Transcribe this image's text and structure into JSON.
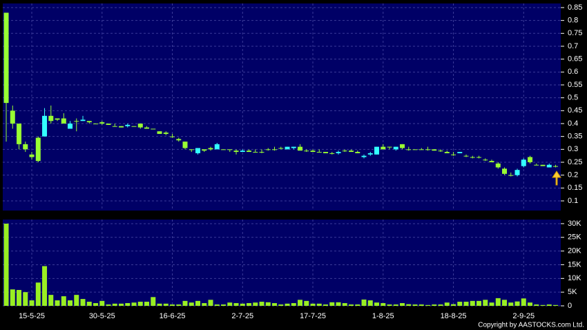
{
  "chart_data": [
    {
      "type": "candlestick",
      "categories": [
        null,
        null,
        null,
        null,
        "15-5-25",
        null,
        null,
        null,
        null,
        null,
        null,
        null,
        null,
        null,
        null,
        "30-5-25",
        null,
        null,
        null,
        null,
        null,
        null,
        null,
        null,
        null,
        null,
        "16-6-25",
        null,
        null,
        null,
        null,
        null,
        null,
        null,
        null,
        null,
        null,
        "2-7-25",
        null,
        null,
        null,
        null,
        null,
        null,
        null,
        null,
        null,
        null,
        "17-7-25",
        null,
        null,
        null,
        null,
        null,
        null,
        null,
        null,
        null,
        null,
        "1-8-25",
        null,
        null,
        null,
        null,
        null,
        null,
        null,
        null,
        null,
        null,
        "18-8-25",
        null,
        null,
        null,
        null,
        null,
        null,
        null,
        null,
        null,
        null,
        "2-9-25",
        null,
        null,
        null,
        null,
        null
      ],
      "open": [
        0.83,
        0.45,
        0.4,
        0.32,
        0.28,
        0.345,
        0.35,
        0.43,
        0.42,
        0.42,
        0.38,
        0.41,
        0.41,
        0.41,
        0.4,
        0.405,
        0.4,
        0.39,
        0.39,
        0.39,
        0.39,
        0.4,
        0.385,
        0.38,
        0.37,
        0.365,
        0.35,
        0.34,
        0.33,
        0.3,
        0.285,
        0.3,
        0.305,
        0.3,
        0.3,
        0.3,
        0.295,
        0.29,
        0.295,
        0.29,
        0.29,
        0.3,
        0.3,
        0.305,
        0.3,
        0.305,
        0.31,
        0.295,
        0.295,
        0.29,
        0.29,
        0.285,
        0.285,
        0.295,
        0.295,
        0.29,
        0.27,
        0.28,
        0.28,
        0.31,
        0.31,
        0.3,
        0.32,
        0.3,
        0.3,
        0.3,
        0.3,
        0.3,
        0.295,
        0.29,
        0.28,
        0.285,
        0.275,
        0.27,
        0.27,
        0.26,
        0.255,
        0.245,
        0.225,
        0.2,
        0.2,
        0.235,
        0.27,
        0.24,
        0.24,
        0.23,
        0.235
      ],
      "high": [
        0.83,
        0.47,
        0.4,
        0.33,
        0.29,
        0.35,
        0.46,
        0.47,
        0.42,
        0.44,
        0.41,
        0.42,
        0.43,
        0.41,
        0.4,
        0.41,
        0.4,
        0.4,
        0.39,
        0.4,
        0.39,
        0.4,
        0.39,
        0.38,
        0.37,
        0.37,
        0.36,
        0.345,
        0.33,
        0.3,
        0.305,
        0.3,
        0.31,
        0.325,
        0.3,
        0.3,
        0.3,
        0.3,
        0.3,
        0.3,
        0.3,
        0.305,
        0.31,
        0.31,
        0.31,
        0.31,
        0.32,
        0.3,
        0.3,
        0.3,
        0.29,
        0.29,
        0.295,
        0.3,
        0.3,
        0.295,
        0.28,
        0.29,
        0.31,
        0.32,
        0.31,
        0.31,
        0.32,
        0.31,
        0.3,
        0.305,
        0.31,
        0.3,
        0.3,
        0.295,
        0.29,
        0.29,
        0.28,
        0.275,
        0.275,
        0.265,
        0.26,
        0.25,
        0.23,
        0.21,
        0.225,
        0.265,
        0.275,
        0.245,
        0.24,
        0.245,
        0.24
      ],
      "low": [
        0.33,
        0.38,
        0.3,
        0.29,
        0.26,
        0.25,
        0.35,
        0.4,
        0.41,
        0.4,
        0.38,
        0.37,
        0.41,
        0.4,
        0.4,
        0.395,
        0.395,
        0.39,
        0.385,
        0.385,
        0.39,
        0.38,
        0.38,
        0.38,
        0.36,
        0.355,
        0.345,
        0.33,
        0.3,
        0.29,
        0.28,
        0.29,
        0.295,
        0.3,
        0.3,
        0.29,
        0.28,
        0.29,
        0.29,
        0.29,
        0.285,
        0.295,
        0.295,
        0.3,
        0.3,
        0.3,
        0.3,
        0.29,
        0.29,
        0.29,
        0.285,
        0.28,
        0.28,
        0.29,
        0.29,
        0.285,
        0.265,
        0.275,
        0.28,
        0.3,
        0.3,
        0.295,
        0.3,
        0.295,
        0.3,
        0.3,
        0.295,
        0.295,
        0.29,
        0.285,
        0.275,
        0.285,
        0.27,
        0.265,
        0.265,
        0.255,
        0.25,
        0.225,
        0.2,
        0.195,
        0.195,
        0.23,
        0.245,
        0.24,
        0.235,
        0.23,
        0.23
      ],
      "close": [
        0.48,
        0.4,
        0.32,
        0.3,
        0.27,
        0.255,
        0.43,
        0.41,
        0.415,
        0.4,
        0.4,
        0.41,
        0.415,
        0.405,
        0.4,
        0.4,
        0.395,
        0.39,
        0.385,
        0.395,
        0.39,
        0.385,
        0.38,
        0.38,
        0.36,
        0.36,
        0.35,
        0.335,
        0.305,
        0.3,
        0.305,
        0.295,
        0.3,
        0.32,
        0.3,
        0.3,
        0.29,
        0.295,
        0.29,
        0.29,
        0.29,
        0.3,
        0.3,
        0.305,
        0.31,
        0.31,
        0.295,
        0.295,
        0.29,
        0.29,
        0.285,
        0.285,
        0.29,
        0.295,
        0.29,
        0.285,
        0.275,
        0.285,
        0.31,
        0.3,
        0.31,
        0.31,
        0.305,
        0.3,
        0.3,
        0.3,
        0.3,
        0.295,
        0.295,
        0.285,
        0.28,
        0.29,
        0.275,
        0.27,
        0.27,
        0.26,
        0.25,
        0.23,
        0.205,
        0.2,
        0.22,
        0.26,
        0.25,
        0.24,
        0.235,
        0.24,
        0.235
      ],
      "up_color": "#33ffff",
      "down_color": "#99ff33",
      "ylim": [
        0.0625,
        0.866
      ],
      "yticks": [
        0.1,
        0.15,
        0.2,
        0.25,
        0.3,
        0.35,
        0.4,
        0.45,
        0.5,
        0.55,
        0.6,
        0.65,
        0.7,
        0.75,
        0.8,
        0.85
      ],
      "grid": true
    },
    {
      "type": "bar",
      "color": "#99ee22",
      "values": [
        30000,
        6000,
        5800,
        5000,
        2000,
        8500,
        14500,
        4000,
        2000,
        3500,
        2000,
        4000,
        2500,
        1500,
        1000,
        1800,
        500,
        800,
        800,
        1000,
        1200,
        1500,
        1500,
        3200,
        800,
        800,
        500,
        500,
        1800,
        1200,
        1800,
        1000,
        2200,
        500,
        500,
        1200,
        1000,
        800,
        1000,
        1200,
        1500,
        1300,
        1000,
        500,
        800,
        1000,
        2200,
        1800,
        800,
        800,
        500,
        1300,
        1300,
        1000,
        500,
        500,
        2300,
        2000,
        1200,
        1000,
        500,
        500,
        1000,
        600,
        500,
        500,
        300,
        500,
        500,
        1200,
        600,
        1500,
        1500,
        1800,
        1800,
        2200,
        1200,
        2800,
        2200,
        1200,
        1600,
        2700,
        1200,
        500,
        300,
        500,
        300
      ],
      "ylim": [
        0,
        31500
      ],
      "yticks": [
        0,
        {
          "value": 5000,
          "label": "5K"
        },
        {
          "value": 10000,
          "label": "10K"
        },
        {
          "value": 15000,
          "label": "15K"
        },
        {
          "value": 20000,
          "label": "20K"
        },
        {
          "value": 25000,
          "label": "25K"
        },
        {
          "value": 30000,
          "label": "30K"
        }
      ],
      "grid": true
    }
  ],
  "copyright": "Copyright by AASTOCKS.com Ltd."
}
